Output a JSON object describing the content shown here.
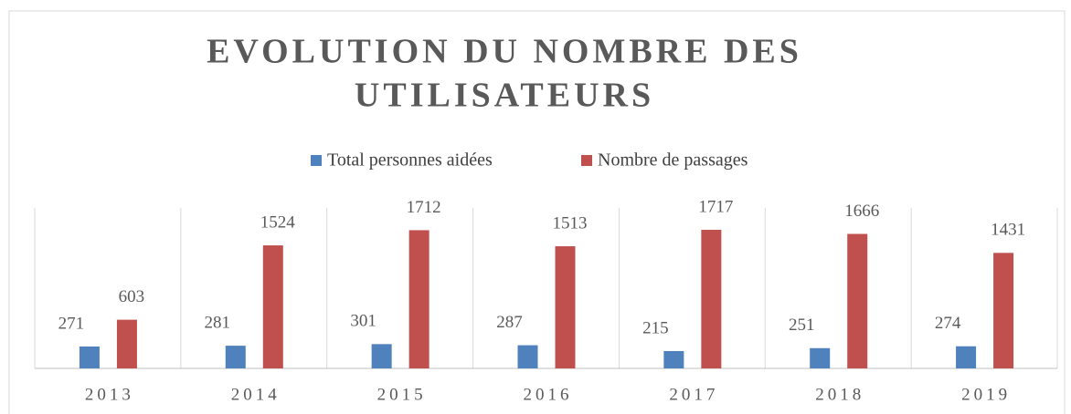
{
  "chart_data": {
    "type": "bar",
    "title": [
      "EVOLUTION DU NOMBRE DES",
      "UTILISATEURS"
    ],
    "categories": [
      "2013",
      "2014",
      "2015",
      "2016",
      "2017",
      "2018",
      "2019"
    ],
    "series": [
      {
        "name": "Total personnes aidées",
        "color": "#4f81bd",
        "values": [
          271,
          281,
          301,
          287,
          215,
          251,
          274
        ]
      },
      {
        "name": "Nombre de passages",
        "color": "#c0504d",
        "values": [
          603,
          1524,
          1712,
          1513,
          1717,
          1666,
          1431
        ]
      }
    ],
    "legend": "top"
  }
}
